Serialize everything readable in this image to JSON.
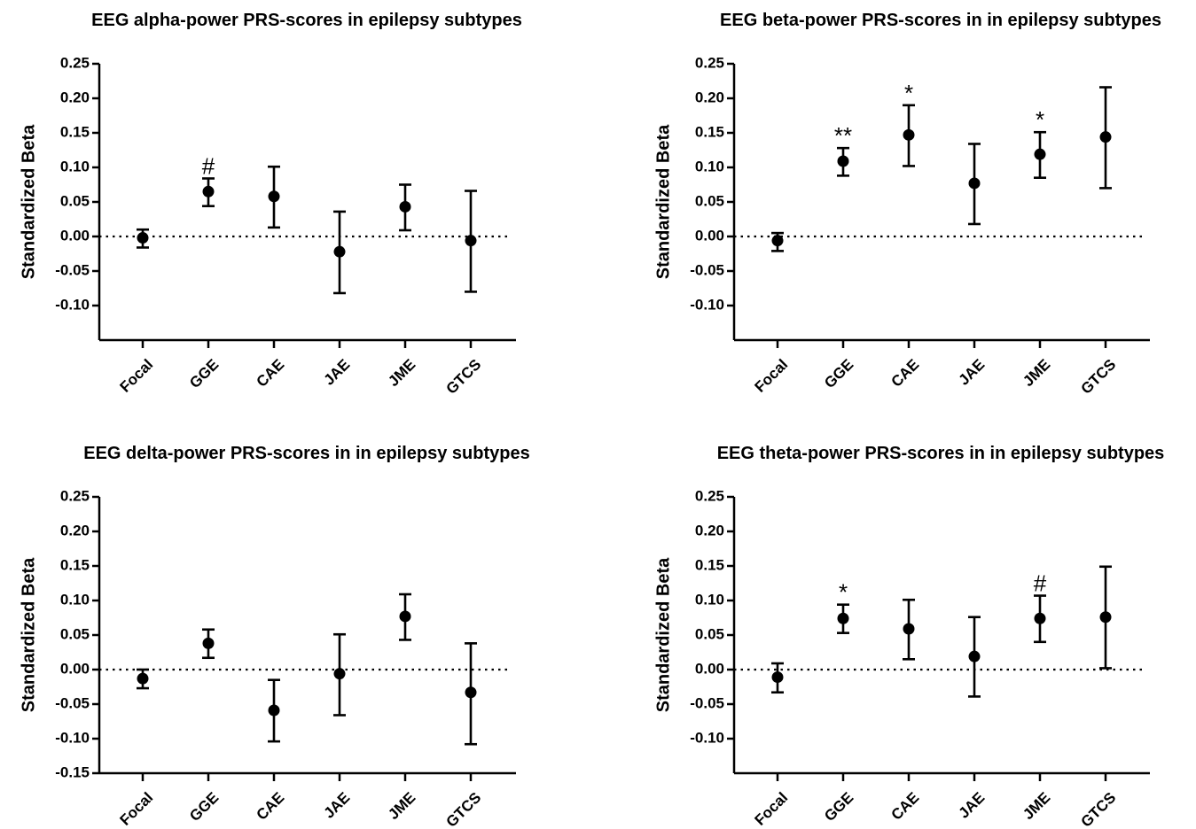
{
  "chart_data": [
    {
      "type": "scatter",
      "title": "EEG alpha-power PRS-scores in epilepsy subtypes",
      "ylabel": "Standardized Beta",
      "categories": [
        "Focal",
        "GGE",
        "CAE",
        "JAE",
        "JME",
        "GTCS"
      ],
      "values": [
        -0.002,
        0.065,
        0.058,
        -0.022,
        0.043,
        -0.006
      ],
      "ci_low": [
        -0.016,
        0.044,
        0.013,
        -0.082,
        0.009,
        -0.08
      ],
      "ci_high": [
        0.01,
        0.084,
        0.101,
        0.036,
        0.075,
        0.066
      ],
      "annotations": [
        "",
        "#",
        "",
        "",
        "",
        ""
      ],
      "ylim": [
        -0.15,
        0.25
      ],
      "yticks": [
        "0.25",
        "0.20",
        "0.15",
        "0.10",
        "0.05",
        "0.00",
        "-0.05",
        "-0.10"
      ],
      "reference_line": 0
    },
    {
      "type": "scatter",
      "title": "EEG beta-power PRS-scores in in epilepsy subtypes",
      "ylabel": "Standardized Beta",
      "categories": [
        "Focal",
        "GGE",
        "CAE",
        "JAE",
        "JME",
        "GTCS"
      ],
      "values": [
        -0.006,
        0.109,
        0.147,
        0.077,
        0.119,
        0.144
      ],
      "ci_low": [
        -0.021,
        0.088,
        0.102,
        0.018,
        0.085,
        0.07
      ],
      "ci_high": [
        0.005,
        0.128,
        0.19,
        0.134,
        0.151,
        0.216
      ],
      "annotations": [
        "",
        "**",
        "*",
        "",
        "*",
        ""
      ],
      "ylim": [
        -0.1,
        0.25
      ],
      "yticks": [
        "0.25",
        "0.20",
        "0.15",
        "0.10",
        "0.05",
        "0.00",
        "-0.05",
        "-0.10"
      ],
      "reference_line": 0
    },
    {
      "type": "scatter",
      "title": "EEG delta-power PRS-scores in in epilepsy subtypes",
      "ylabel": "Standardized Beta",
      "categories": [
        "Focal",
        "GGE",
        "CAE",
        "JAE",
        "JME",
        "GTCS"
      ],
      "values": [
        -0.013,
        0.038,
        -0.059,
        -0.006,
        0.077,
        -0.033
      ],
      "ci_low": [
        -0.027,
        0.017,
        -0.104,
        -0.066,
        0.043,
        -0.108
      ],
      "ci_high": [
        0.0,
        0.058,
        -0.015,
        0.051,
        0.109,
        0.038
      ],
      "annotations": [
        "",
        "",
        "",
        "",
        "",
        ""
      ],
      "ylim": [
        -0.15,
        0.25
      ],
      "yticks": [
        "0.25",
        "0.20",
        "0.15",
        "0.10",
        "0.05",
        "0.00",
        "-0.05",
        "-0.10",
        "-0.15"
      ],
      "reference_line": 0
    },
    {
      "type": "scatter",
      "title": "EEG theta-power PRS-scores in in epilepsy subtypes",
      "ylabel": "Standardized Beta",
      "categories": [
        "Focal",
        "GGE",
        "CAE",
        "JAE",
        "JME",
        "GTCS"
      ],
      "values": [
        -0.011,
        0.074,
        0.059,
        0.019,
        0.074,
        0.076
      ],
      "ci_low": [
        -0.033,
        0.053,
        0.015,
        -0.039,
        0.04,
        0.002
      ],
      "ci_high": [
        0.009,
        0.094,
        0.101,
        0.076,
        0.107,
        0.149
      ],
      "annotations": [
        "",
        "*",
        "",
        "",
        "#",
        ""
      ],
      "ylim": [
        -0.15,
        0.25
      ],
      "yticks": [
        "0.25",
        "0.20",
        "0.15",
        "0.10",
        "0.05",
        "0.00",
        "-0.05",
        "-0.10"
      ],
      "reference_line": 0
    }
  ]
}
